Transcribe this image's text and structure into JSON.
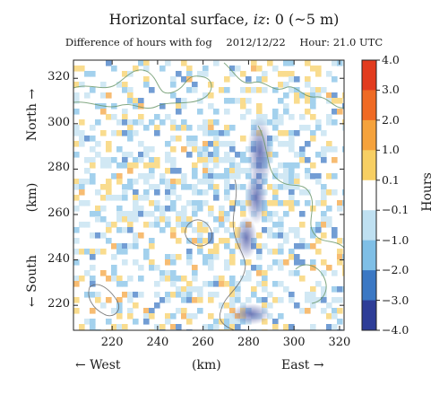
{
  "header": {
    "title_prefix": "Horizontal surface, ",
    "title_iz": "iz",
    "title_suffix": ": 0 (~5 m)",
    "subtitle_desc": "Difference of hours with fog",
    "subtitle_date": "2012/12/22",
    "subtitle_hour": "Hour: 21.0 UTC"
  },
  "axes": {
    "y_north": "North →",
    "y_unit": "(km)",
    "y_south": "← South",
    "x_west": "← West",
    "x_unit": "(km)",
    "x_east": "East →",
    "x_ticks": [
      "220",
      "240",
      "260",
      "280",
      "300",
      "320"
    ],
    "y_ticks": [
      "320",
      "300",
      "280",
      "260",
      "240",
      "220"
    ]
  },
  "colorbar": {
    "label": "Hours",
    "levels": [
      "4.0",
      "3.0",
      "2.0",
      "1.0",
      "0.1",
      "−0.1",
      "−1.0",
      "−2.0",
      "−3.0",
      "−4.0"
    ],
    "colors": [
      "#e23b1e",
      "#ef6a24",
      "#f5a23c",
      "#f7cf63",
      "#ffffff",
      "#bfe0f1",
      "#7fbfe6",
      "#3b78c4",
      "#2e3d97"
    ]
  },
  "chart_data": {
    "type": "heatmap",
    "title": "Horizontal surface, iz: 0 (~5 m)",
    "subtitle": "Difference of hours with fog 2012/12/22 Hour: 21.0 UTC",
    "xlabel": "(km)",
    "ylabel": "(km)",
    "xlim": [
      203,
      322
    ],
    "ylim": [
      209,
      328
    ],
    "colorbar_label": "Hours",
    "colorbar_range": [
      -4.0,
      4.0
    ],
    "grid": false
  }
}
